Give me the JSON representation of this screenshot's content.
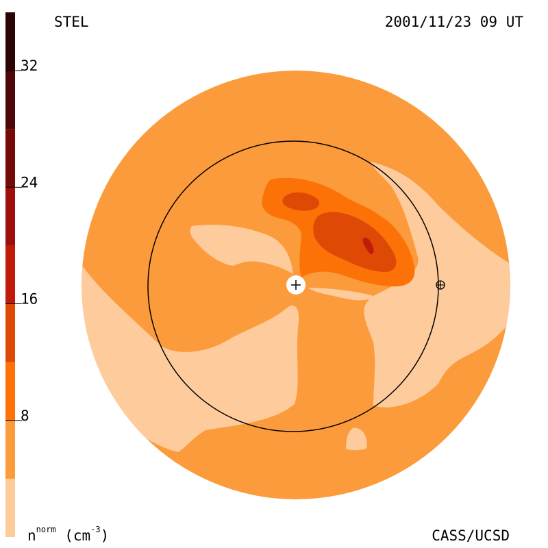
{
  "header": {
    "instrument": "STEL",
    "timestamp": "2001/11/23 09 UT"
  },
  "footer": {
    "credit": "CASS/UCSD",
    "unit_symbol": "n",
    "unit_superscript": "norm",
    "unit_open": "(cm",
    "unit_exponent": "-3",
    "unit_close": ")"
  },
  "colors": {
    "level_0_4": "#fdcb9c",
    "level_4_8": "#fb9b3b",
    "level_8_12": "#fc7207",
    "level_12_16": "#de4a05",
    "level_16_20": "#c01b09",
    "level_20_24": "#9e0f0c",
    "level_24_28": "#760a08",
    "level_28_32": "#4e0707",
    "level_32_36": "#2b0404"
  },
  "chart_data": {
    "type": "heatmap",
    "title": "STEL",
    "subtitle": "2001/11/23 09 UT",
    "colorbar": {
      "label": "n norm (cm-3)",
      "range": [
        0,
        36
      ],
      "boundaries": [
        0,
        4,
        8,
        12,
        16,
        20,
        24,
        28,
        32,
        36
      ],
      "tick_labels": [
        "8",
        "16",
        "24",
        "32"
      ],
      "tick_values": [
        8,
        16,
        24,
        32
      ]
    },
    "view": "ecliptic plane density map centered on the Sun, with Earth orbit circle",
    "regions": [
      {
        "level": "4-8",
        "description": "background solar wind density"
      },
      {
        "level": "0-4",
        "description": "low-density regions (south and west)"
      },
      {
        "level": "8-12",
        "description": "enhanced density structure north of Sun"
      },
      {
        "level": "12-16",
        "description": "dense core of CME structure"
      },
      {
        "level": "16-20",
        "description": "peak density spot"
      }
    ],
    "markers": [
      {
        "name": "Sun",
        "symbol": "+"
      },
      {
        "name": "Earth",
        "symbol": "⊕"
      }
    ]
  }
}
